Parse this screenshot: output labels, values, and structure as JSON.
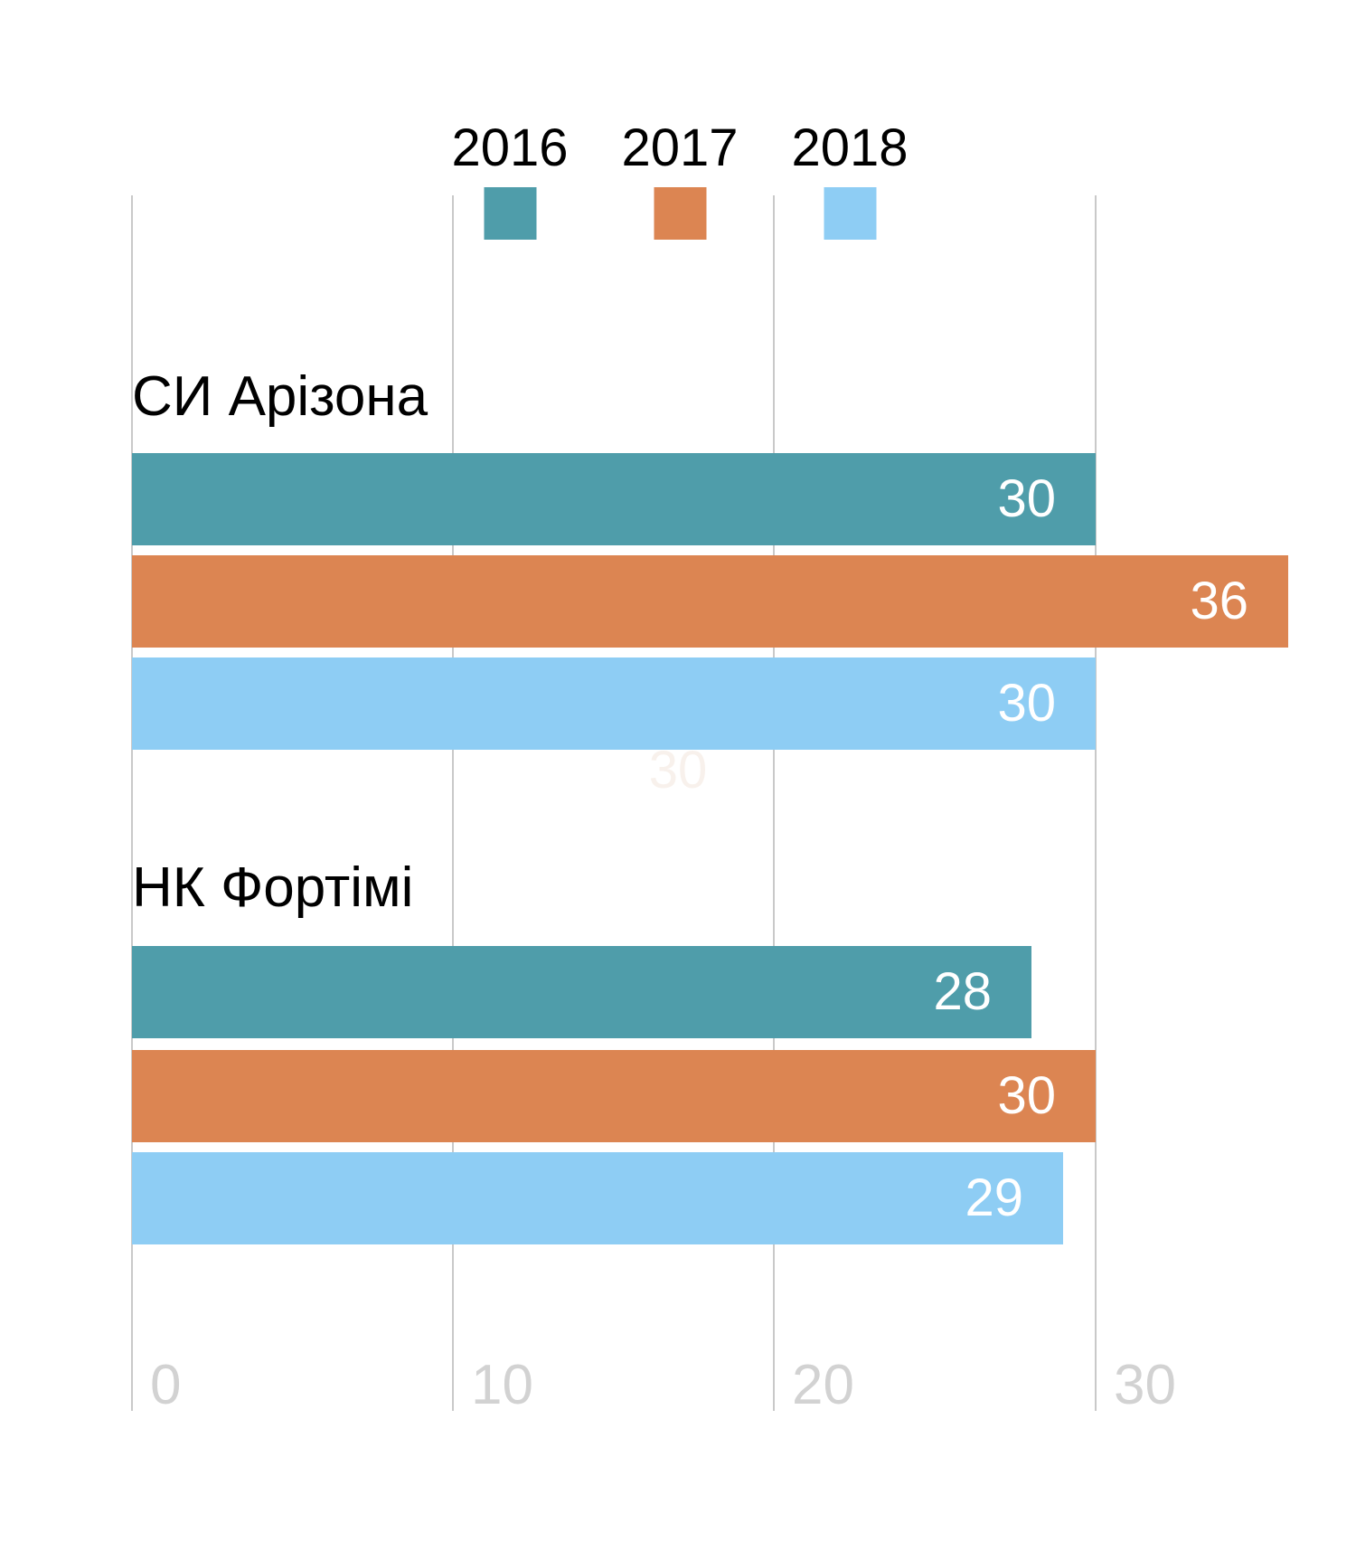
{
  "chart_data": {
    "type": "bar",
    "orientation": "horizontal",
    "title": "",
    "categories": [
      "СИ Арізона",
      "НК Фортімі"
    ],
    "series": [
      {
        "name": "2016",
        "color": "#4F9DAA",
        "values": [
          30,
          28
        ]
      },
      {
        "name": "2017",
        "color": "#DC8552",
        "values": [
          36,
          30
        ]
      },
      {
        "name": "2018",
        "color": "#8ECDF4",
        "values": [
          30,
          29
        ]
      }
    ],
    "x_axis": {
      "ticks": [
        0,
        10,
        20,
        30
      ],
      "range": [
        0,
        38
      ]
    },
    "legend_position": "top",
    "grid": "vertical-only",
    "value_labels": "inside-end, white",
    "ghost_label": "30",
    "colors": {
      "background": "#ffffff",
      "grid": "#c9c9c9",
      "tick_text": "#d2d2d2",
      "category_text": "#000000",
      "value_text": "#ffffff"
    }
  }
}
